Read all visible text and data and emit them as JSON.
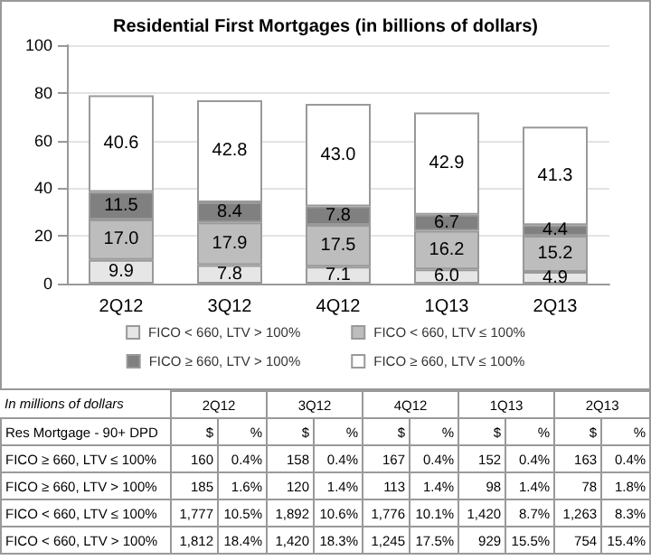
{
  "chart_data": [
    {
      "type": "bar",
      "title": "Residential First Mortgages (in billions of dollars)",
      "categories": [
        "2Q12",
        "3Q12",
        "4Q12",
        "1Q13",
        "2Q13"
      ],
      "stacked": true,
      "grid": "y",
      "legend": "bottom",
      "ylim": [
        0,
        100
      ],
      "yticks": [
        0,
        20,
        40,
        60,
        80,
        100
      ],
      "series": [
        {
          "name": "FICO < 660, LTV > 100%",
          "color": "#e6e6e6",
          "values": [
            9.9,
            7.8,
            7.1,
            6.0,
            4.9
          ],
          "value_labels": [
            "9.9",
            "7.8",
            "7.1",
            "6.0",
            "4.9"
          ]
        },
        {
          "name": "FICO < 660, LTV ≤ 100%",
          "color": "#bdbdbd",
          "values": [
            17.0,
            17.9,
            17.5,
            16.2,
            15.2
          ],
          "value_labels": [
            "17.0",
            "17.9",
            "17.5",
            "16.2",
            "15.2"
          ]
        },
        {
          "name": "FICO ≥ 660, LTV > 100%",
          "color": "#808080",
          "values": [
            11.5,
            8.4,
            7.8,
            6.7,
            4.4
          ],
          "value_labels": [
            "11.5",
            "8.4",
            "7.8",
            "6.7",
            "4.4"
          ]
        },
        {
          "name": "FICO ≥ 660, LTV ≤ 100%",
          "color": "#ffffff",
          "values": [
            40.6,
            42.8,
            43.0,
            42.9,
            41.3
          ],
          "value_labels": [
            "40.6",
            "42.8",
            "43.0",
            "42.9",
            "41.3"
          ]
        }
      ]
    },
    {
      "type": "other",
      "title": "In millions of dollars",
      "categories": [
        "2Q12",
        "3Q12",
        "4Q12",
        "1Q13",
        "2Q13"
      ],
      "y_categories": [
        "Res Mortgage - 90+ DPD",
        "FICO ≥ 660, LTV ≤ 100%",
        "FICO ≥ 660, LTV > 100%",
        "FICO < 660, LTV ≤ 100%",
        "FICO < 660, LTV > 100%"
      ],
      "cell_labels": [
        [
          "$",
          "%",
          "$",
          "%",
          "$",
          "%",
          "$",
          "%",
          "$",
          "%"
        ],
        [
          "160",
          "0.4%",
          "158",
          "0.4%",
          "167",
          "0.4%",
          "152",
          "0.4%",
          "163",
          "0.4%"
        ],
        [
          "185",
          "1.6%",
          "120",
          "1.4%",
          "113",
          "1.4%",
          "98",
          "1.4%",
          "78",
          "1.8%"
        ],
        [
          "1,777",
          "10.5%",
          "1,892",
          "10.6%",
          "1,776",
          "10.1%",
          "1,420",
          "8.7%",
          "1,263",
          "8.3%"
        ],
        [
          "1,812",
          "18.4%",
          "1,420",
          "18.3%",
          "1,245",
          "17.5%",
          "929",
          "15.5%",
          "754",
          "15.4%"
        ]
      ]
    }
  ]
}
